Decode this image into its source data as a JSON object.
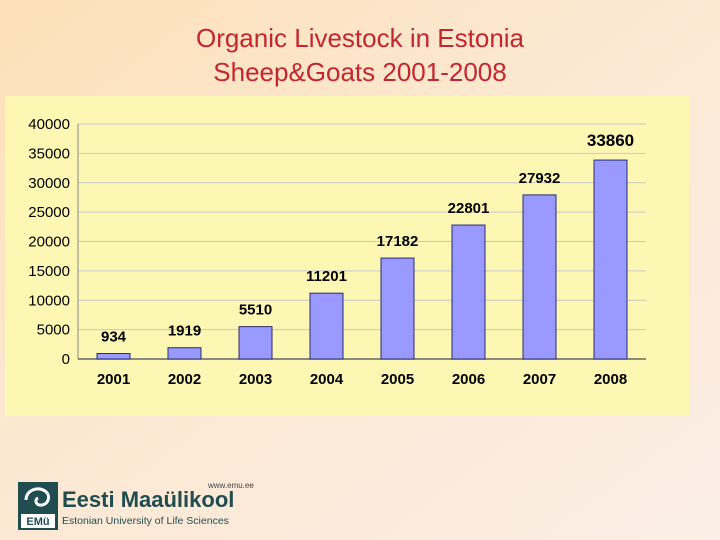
{
  "header": {
    "title_line1": "Organic Livestock in Estonia",
    "title_line2": "Sheep&Goats 2001-2008"
  },
  "chart_data": {
    "type": "bar",
    "categories": [
      "2001",
      "2002",
      "2003",
      "2004",
      "2005",
      "2006",
      "2007",
      "2008"
    ],
    "values": [
      934,
      1919,
      5510,
      11201,
      17182,
      22801,
      27932,
      33860
    ],
    "data_labels": [
      "934",
      "1919",
      "5510",
      "11201",
      "17182",
      "22801",
      "27932",
      "33860"
    ],
    "ylim": [
      0,
      40000
    ],
    "yticks": [
      0,
      5000,
      10000,
      15000,
      20000,
      25000,
      30000,
      35000,
      40000
    ],
    "ytick_labels": [
      "0",
      "5000",
      "10000",
      "15000",
      "20000",
      "25000",
      "30000",
      "35000",
      "40000"
    ],
    "grid": true,
    "legend": "none",
    "colors": {
      "bar": "#9999ff",
      "bar_edge": "#2b2b6e",
      "plot_bg": "#fcf8b4",
      "grid": "#c8c8c8"
    }
  },
  "footer": {
    "logo_url": "www.emu.ee",
    "logo_name": "Eesti Maaülikool",
    "logo_subtitle": "Estonian University of Life Sciences",
    "logo_badge": "EMü",
    "colors": {
      "logo_primary": "#1f4d50",
      "logo_accent": "#c4262e"
    }
  }
}
